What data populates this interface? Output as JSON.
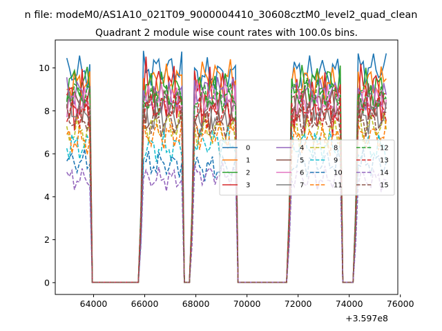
{
  "chart_data": {
    "type": "line",
    "suptitle": "n file: modeM0/AS1A10_021T09_9000004410_30608cztM0_level2_quad_clean",
    "title": "Quadrant 2 module wise count rates with 100.0s bins.",
    "xlabel": "",
    "ylabel": "",
    "x_offset_label": "+3.597e8",
    "xlim": [
      62500,
      75900
    ],
    "ylim": [
      -0.55,
      11.3
    ],
    "x_ticks": [
      64000,
      66000,
      68000,
      70000,
      72000,
      74000,
      76000
    ],
    "x_tick_labels": [
      "64000",
      "66000",
      "68000",
      "70000",
      "72000",
      "74000",
      "76000"
    ],
    "y_ticks": [
      0,
      2,
      4,
      6,
      8,
      10
    ],
    "y_tick_labels": [
      "0",
      "2",
      "4",
      "6",
      "8",
      "10"
    ],
    "grid": false,
    "legend": {
      "placement": "center-right",
      "columns": 4
    },
    "bin_seconds": 100,
    "active_segments": [
      {
        "start": 62950,
        "end": 63850,
        "transition": 63850
      },
      {
        "start": 65950,
        "end": 67450,
        "transition": 65850
      },
      {
        "start": 67950,
        "end": 69550,
        "transition": 67850
      },
      {
        "start": 71750,
        "end": 73650,
        "transition": 71650
      },
      {
        "start": 74350,
        "end": 75450,
        "transition": 74250
      }
    ],
    "quiet_value": 0.02,
    "series": [
      {
        "name": "0",
        "color": "#1f77b4",
        "dash": "solid",
        "mean": 9.8,
        "peak": 10.8
      },
      {
        "name": "1",
        "color": "#ff7f0e",
        "dash": "solid",
        "mean": 9.4,
        "peak": 10.4
      },
      {
        "name": "2",
        "color": "#2ca02c",
        "dash": "solid",
        "mean": 9.1,
        "peak": 10.2
      },
      {
        "name": "3",
        "color": "#d62728",
        "dash": "solid",
        "mean": 8.6,
        "peak": 10.5
      },
      {
        "name": "4",
        "color": "#9467bd",
        "dash": "solid",
        "mean": 8.8,
        "peak": 9.7
      },
      {
        "name": "5",
        "color": "#8c564b",
        "dash": "solid",
        "mean": 8.2,
        "peak": 9.3
      },
      {
        "name": "6",
        "color": "#e377c2",
        "dash": "solid",
        "mean": 8.5,
        "peak": 9.5
      },
      {
        "name": "7",
        "color": "#7f7f7f",
        "dash": "solid",
        "mean": 7.9,
        "peak": 9.0
      },
      {
        "name": "8",
        "color": "#bcbd22",
        "dash": "dashed",
        "mean": 7.1,
        "peak": 8.0
      },
      {
        "name": "9",
        "color": "#17becf",
        "dash": "dashed",
        "mean": 6.4,
        "peak": 7.3
      },
      {
        "name": "10",
        "color": "#1f77b4",
        "dash": "dashed",
        "mean": 5.5,
        "peak": 6.3
      },
      {
        "name": "11",
        "color": "#ff7f0e",
        "dash": "dashed",
        "mean": 6.8,
        "peak": 7.7
      },
      {
        "name": "12",
        "color": "#2ca02c",
        "dash": "dashed",
        "mean": 8.7,
        "peak": 9.6
      },
      {
        "name": "13",
        "color": "#d62728",
        "dash": "dashed",
        "mean": 8.0,
        "peak": 8.9
      },
      {
        "name": "14",
        "color": "#9467bd",
        "dash": "dashed",
        "mean": 4.9,
        "peak": 5.6
      },
      {
        "name": "15",
        "color": "#8c564b",
        "dash": "dashed",
        "mean": 7.5,
        "peak": 8.4
      }
    ]
  }
}
